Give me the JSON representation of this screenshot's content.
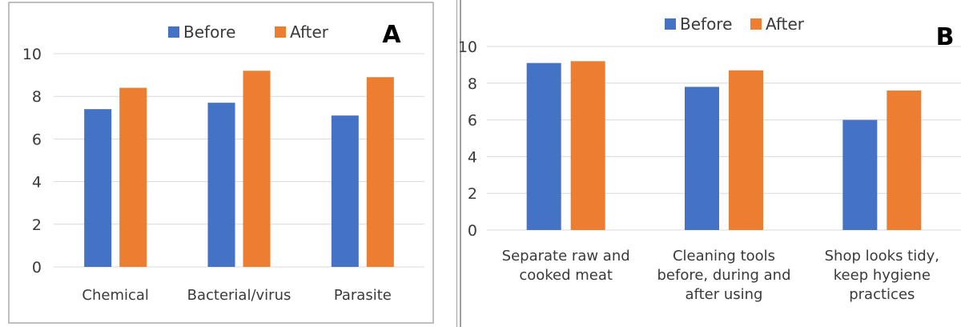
{
  "chart_data": [
    {
      "panel_label": "A",
      "type": "bar",
      "categories": [
        [
          "Chemical"
        ],
        [
          "Bacterial/virus"
        ],
        [
          "Parasite"
        ]
      ],
      "series": [
        {
          "name": "Before",
          "color": "#4472C4",
          "values": [
            7.4,
            7.7,
            7.1
          ]
        },
        {
          "name": "After",
          "color": "#ED7D31",
          "values": [
            8.4,
            9.2,
            8.9
          ]
        }
      ],
      "ylim": [
        0,
        10
      ],
      "yticks": [
        "0",
        "2",
        "4",
        "6",
        "8",
        "10"
      ],
      "grid": true,
      "legend": "top-right",
      "title": "",
      "xlabel": "",
      "ylabel": ""
    },
    {
      "panel_label": "B",
      "type": "bar",
      "categories": [
        [
          "Separate raw and",
          "cooked meat"
        ],
        [
          "Cleaning tools",
          "before, during and",
          "after using"
        ],
        [
          "Shop looks tidy,",
          "keep hygiene",
          "practices"
        ]
      ],
      "series": [
        {
          "name": "Before",
          "color": "#4472C4",
          "values": [
            9.1,
            7.8,
            6.0
          ]
        },
        {
          "name": "After",
          "color": "#ED7D31",
          "values": [
            9.2,
            8.7,
            7.6
          ]
        }
      ],
      "ylim": [
        0,
        10
      ],
      "yticks": [
        "0",
        "2",
        "4",
        "6",
        "8",
        "10"
      ],
      "grid": true,
      "legend": "top",
      "title": "",
      "xlabel": "",
      "ylabel": ""
    }
  ]
}
